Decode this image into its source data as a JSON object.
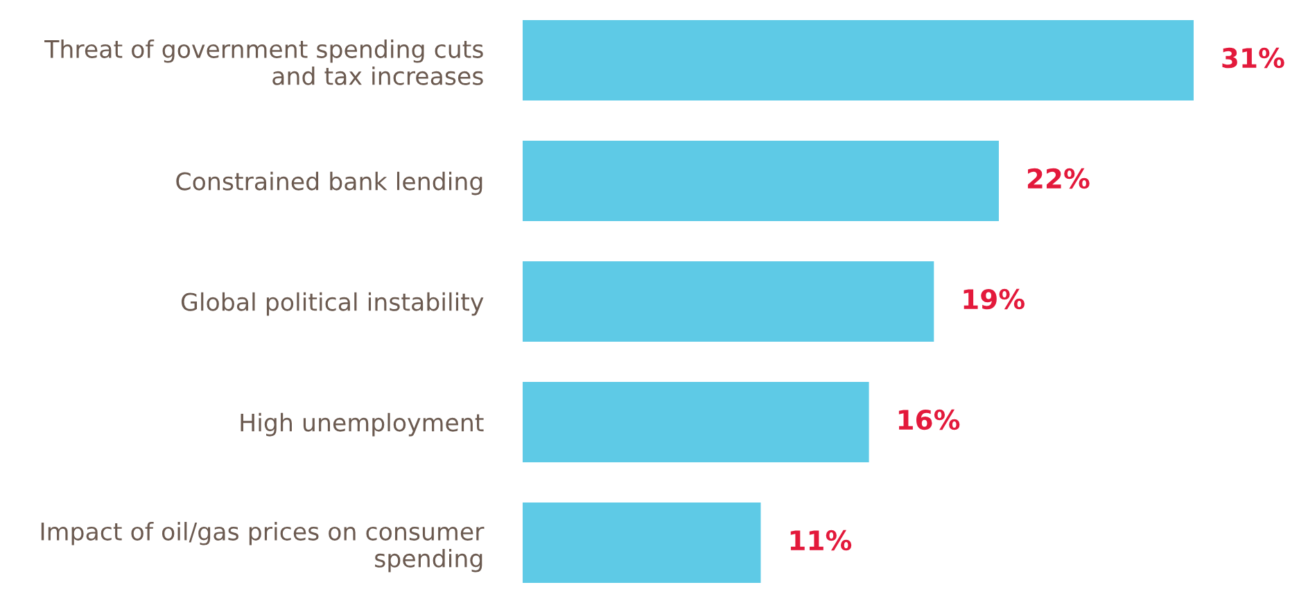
{
  "chart_data": {
    "type": "bar",
    "orientation": "horizontal",
    "categories": [
      "Threat of government spending cuts\nand tax increases",
      "Constrained bank lending",
      "Global political instability",
      "High unemployment",
      "Impact of oil/gas prices on consumer\nspending"
    ],
    "values": [
      31,
      22,
      19,
      16,
      11
    ],
    "value_labels": [
      "31%",
      "22%",
      "19%",
      "16%",
      "11%"
    ],
    "color": "#5ecae6",
    "grid": false,
    "legend": false,
    "tick_labels": "y"
  }
}
